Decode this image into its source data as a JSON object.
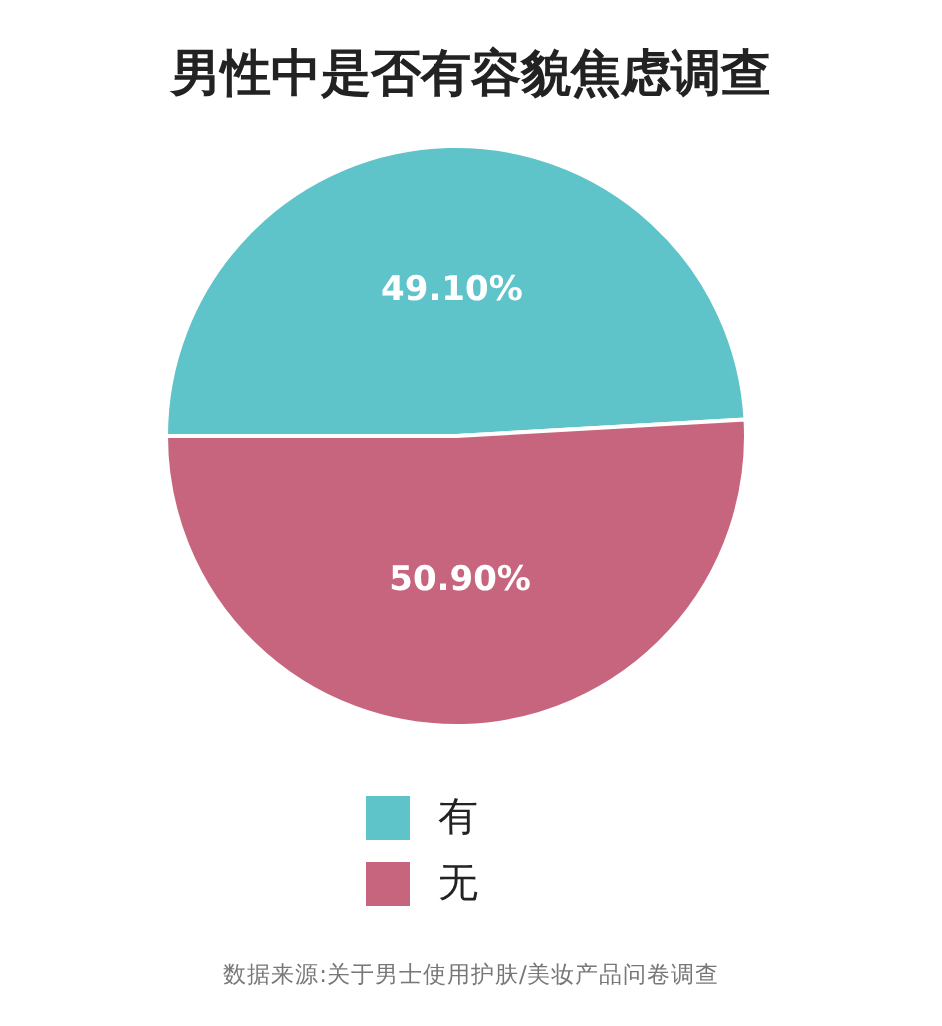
{
  "chart_data": {
    "type": "pie",
    "title": "男性中是否有容貌焦虑调查",
    "categories": [
      "有",
      "无"
    ],
    "values": [
      49.1,
      50.9
    ],
    "colors": [
      "#5fc3ca",
      "#c7657f"
    ],
    "value_labels": [
      "49.10%",
      "50.90%"
    ],
    "legend": "bottom",
    "annotations": [
      "数据来源:关于男士使用护肤/美妆产品问卷调查"
    ]
  }
}
